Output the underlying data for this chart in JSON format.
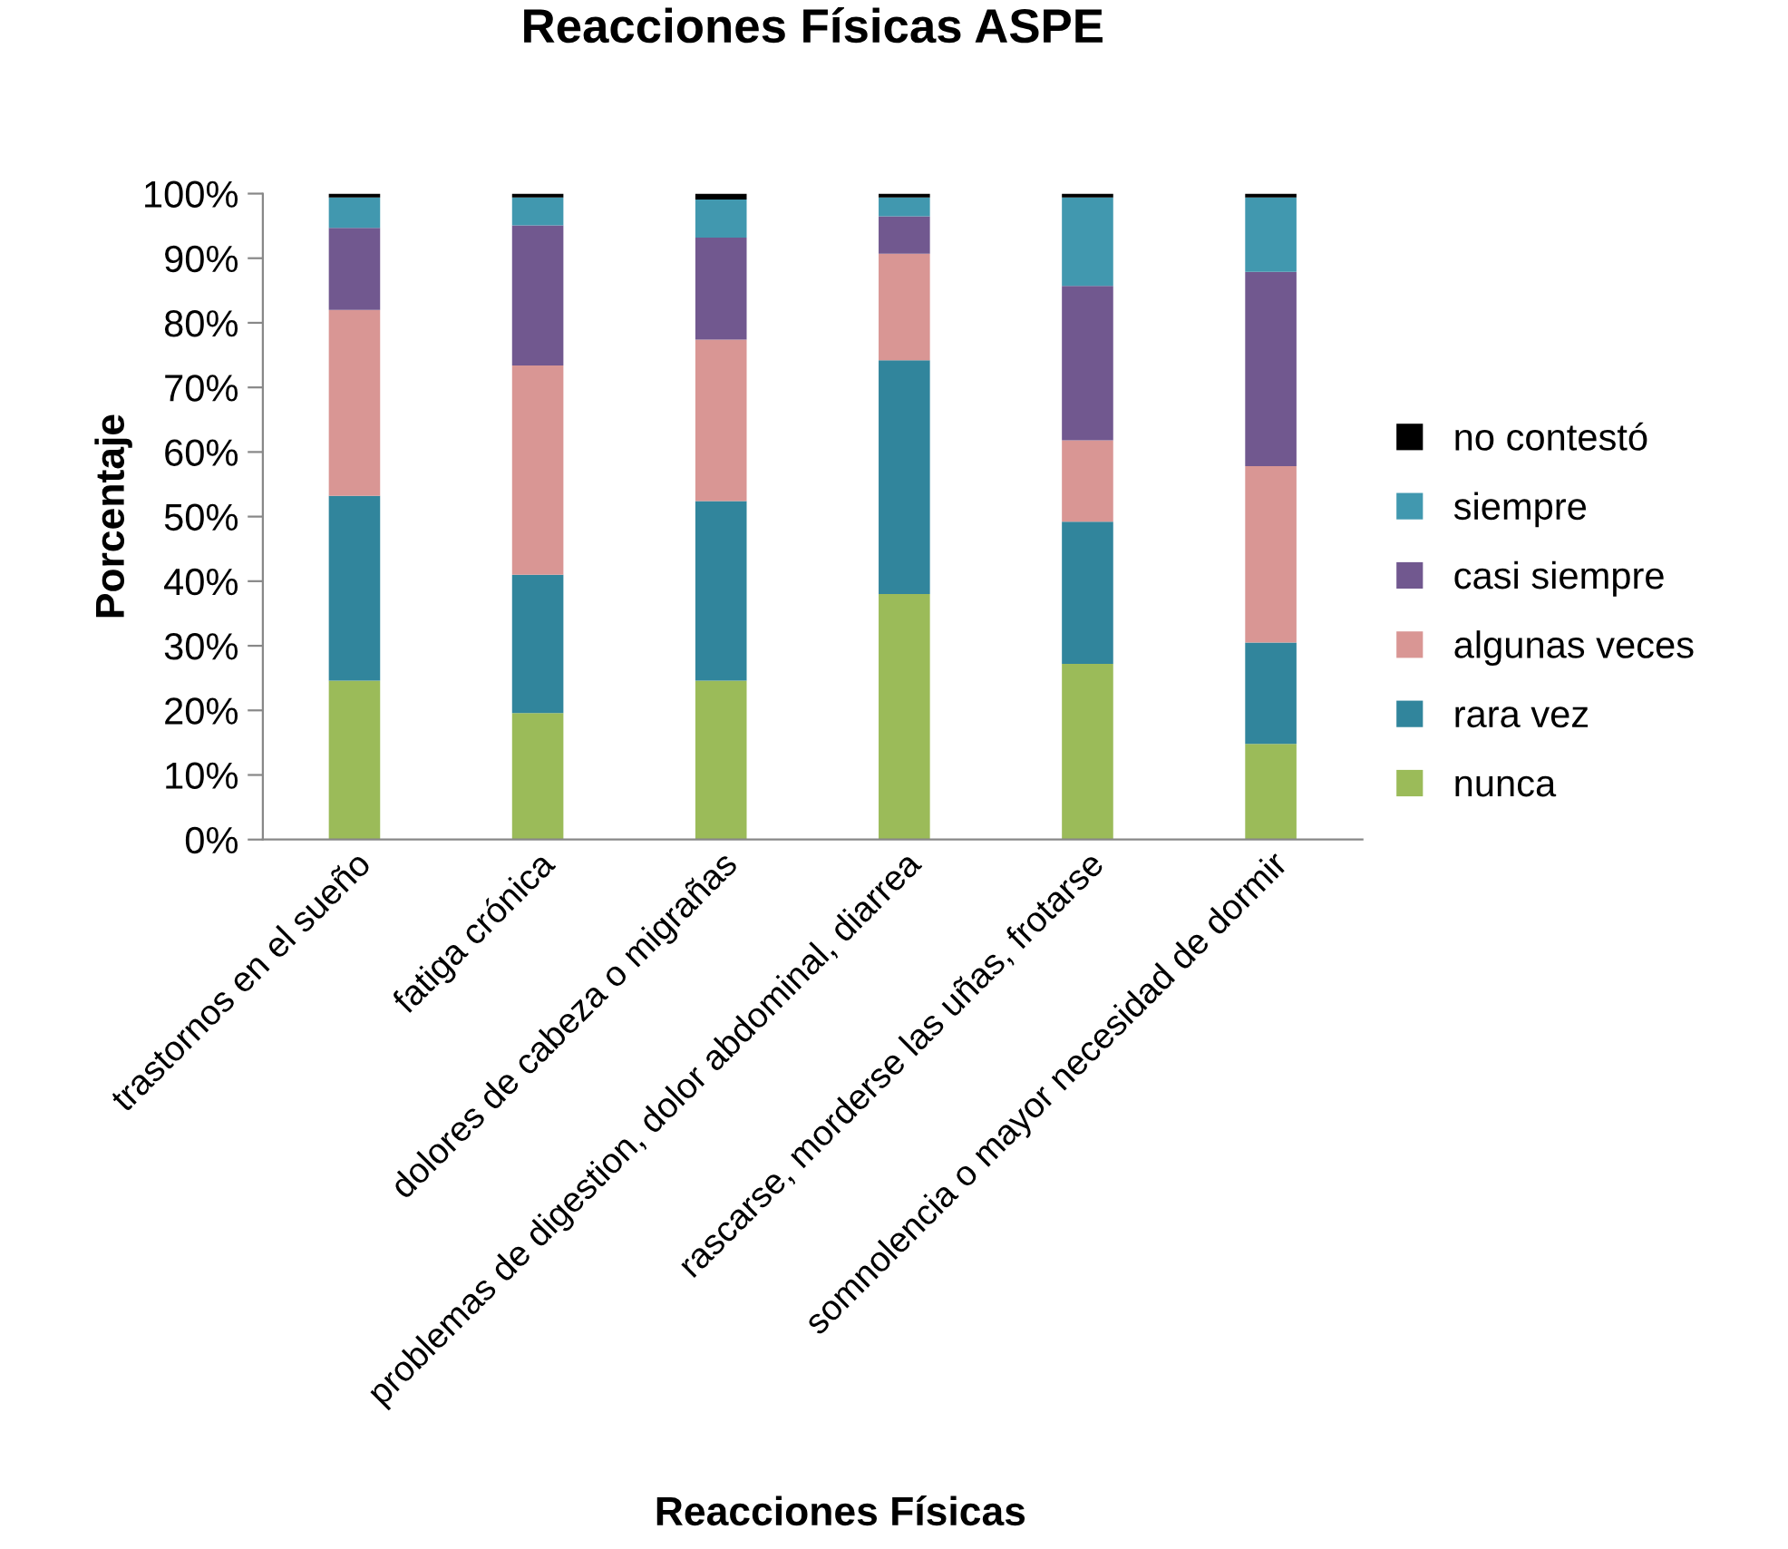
{
  "chart_data": {
    "type": "bar",
    "stacked": true,
    "title": "Reacciones Físicas ASPE",
    "xlabel": "Reacciones Físicas",
    "ylabel": "Porcentaje",
    "categories": [
      "trastornos en el sueño",
      "fatiga crónica",
      "dolores de cabeza o migrañas",
      "problemas de digestion, dolor abdominal, diarrea",
      "rascarse, morderse las uñas, frotarse",
      "somnolencia o mayor necesidad de dormir"
    ],
    "series": [
      {
        "name": "nunca",
        "color": "#9bbb59",
        "values": [
          24.6,
          19.6,
          24.6,
          38.0,
          27.2,
          14.8
        ]
      },
      {
        "name": "rara vez",
        "color": "#31859c",
        "values": [
          28.6,
          21.4,
          27.8,
          36.2,
          22.0,
          15.7
        ]
      },
      {
        "name": "algunas veces",
        "color": "#d99694",
        "values": [
          28.8,
          32.4,
          25.0,
          16.5,
          12.6,
          27.3
        ]
      },
      {
        "name": "casi siempre",
        "color": "#71588f",
        "values": [
          12.7,
          21.7,
          15.8,
          5.8,
          23.9,
          30.1
        ]
      },
      {
        "name": "siempre",
        "color": "#4198af",
        "values": [
          4.7,
          4.3,
          5.9,
          2.9,
          13.7,
          11.5
        ]
      },
      {
        "name": "no contestó",
        "color": "#000000",
        "values": [
          0.6,
          0.6,
          0.9,
          0.6,
          0.6,
          0.6
        ]
      }
    ],
    "ylim": [
      0,
      100
    ],
    "yticks": [
      {
        "value": 0,
        "label": "0%"
      },
      {
        "value": 10,
        "label": "10%"
      },
      {
        "value": 20,
        "label": "20%"
      },
      {
        "value": 30,
        "label": "30%"
      },
      {
        "value": 40,
        "label": "40%"
      },
      {
        "value": 50,
        "label": "50%"
      },
      {
        "value": 60,
        "label": "60%"
      },
      {
        "value": 70,
        "label": "70%"
      },
      {
        "value": 80,
        "label": "80%"
      },
      {
        "value": 90,
        "label": "90%"
      },
      {
        "value": 100,
        "label": "100%"
      }
    ],
    "legend": "right",
    "grid": false
  }
}
